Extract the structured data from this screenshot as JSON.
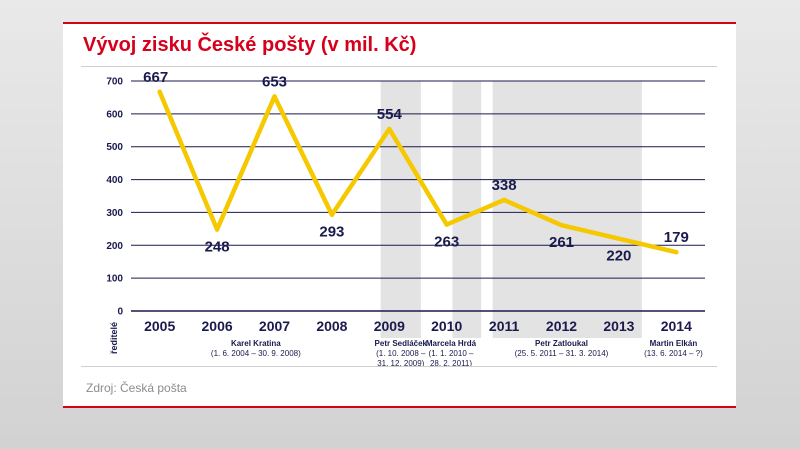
{
  "title": "Vývoj zisku České pošty (v mil. Kč)",
  "source": "Zdroj: Česká pošta",
  "chart_data": {
    "type": "line",
    "title": "Vývoj zisku České pošty (v mil. Kč)",
    "xlabel": "",
    "ylabel": "",
    "ylim": [
      0,
      700
    ],
    "yticks": [
      "0",
      "100",
      "200",
      "300",
      "400",
      "500",
      "600",
      "700"
    ],
    "grid": true,
    "categories": [
      "2005",
      "2006",
      "2007",
      "2008",
      "2009",
      "2010",
      "2011",
      "2012",
      "2013",
      "2014"
    ],
    "series": [
      {
        "color": "#f5c800",
        "values": [
          667,
          248,
          653,
          293,
          554,
          263,
          338,
          261,
          220,
          179
        ]
      }
    ],
    "lower_axis_label": "ředitelé",
    "directors": [
      {
        "name": "Karel Kratina",
        "lines": [
          "(1. 6. 2004 – 30. 9. 2008)"
        ]
      },
      {
        "name": "Petr Sedláček",
        "lines": [
          "(1. 10. 2008 –",
          "31. 12. 2009)"
        ]
      },
      {
        "name": "Marcela Hrdá",
        "lines": [
          "(1. 1. 2010 –",
          "28. 2. 2011)"
        ]
      },
      {
        "name": "Petr Zatloukal",
        "lines": [
          "(25. 5. 2011 – 31. 3. 2014)"
        ]
      },
      {
        "name": "Martin Elkán",
        "lines": [
          "(13. 6. 2014 – ?)"
        ]
      }
    ]
  },
  "colors": {
    "title": "#d6001c",
    "text": "#1a1a4e",
    "line": "#f5c800",
    "grid": "#1a1a4e",
    "band": "#e3e3e3",
    "source": "#8c8c8c"
  }
}
